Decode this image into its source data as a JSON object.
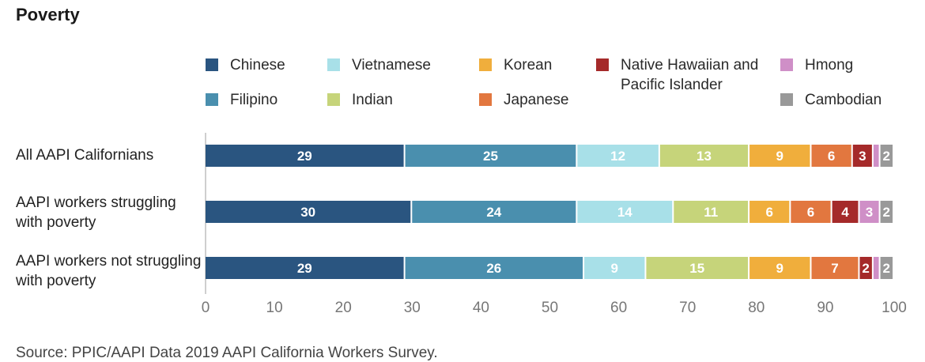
{
  "title": "Poverty",
  "chart_data": {
    "type": "stacked-bar-horizontal",
    "title": "Poverty",
    "xlim": [
      0,
      100
    ],
    "x_ticks": [
      0,
      10,
      20,
      30,
      40,
      50,
      60,
      70,
      80,
      90,
      100
    ],
    "grid": false,
    "legend_position": "top",
    "categories": [
      "All AAPI Californians",
      "AAPI workers struggling with poverty",
      "AAPI workers not struggling with poverty"
    ],
    "series": [
      {
        "name": "Chinese",
        "color": "#2a5580",
        "values": [
          29,
          30,
          29
        ]
      },
      {
        "name": "Filipino",
        "color": "#4a8fae",
        "values": [
          25,
          24,
          26
        ]
      },
      {
        "name": "Vietnamese",
        "color": "#a8e0e8",
        "values": [
          12,
          14,
          9
        ]
      },
      {
        "name": "Indian",
        "color": "#c6d47a",
        "values": [
          13,
          11,
          15
        ]
      },
      {
        "name": "Korean",
        "color": "#f0ae3c",
        "values": [
          9,
          6,
          9
        ]
      },
      {
        "name": "Japanese",
        "color": "#e2773f",
        "values": [
          6,
          6,
          7
        ]
      },
      {
        "name": "Native Hawaiian and Pacific Islander",
        "color": "#a52a2a",
        "values": [
          3,
          4,
          2
        ]
      },
      {
        "name": "Hmong",
        "color": "#cf8fc7",
        "values": [
          1,
          3,
          1
        ]
      },
      {
        "name": "Cambodian",
        "color": "#999999",
        "values": [
          2,
          2,
          2
        ]
      }
    ],
    "data_labels": [
      [
        "29",
        "25",
        "12",
        "13",
        "9",
        "6",
        "3",
        "",
        "2"
      ],
      [
        "30",
        "24",
        "14",
        "11",
        "6",
        "6",
        "4",
        "3",
        "2"
      ],
      [
        "29",
        "26",
        "9",
        "15",
        "9",
        "7",
        "2",
        "",
        "2"
      ]
    ]
  },
  "source": "Source: PPIC/AAPI Data 2019 AAPI California Workers Survey."
}
